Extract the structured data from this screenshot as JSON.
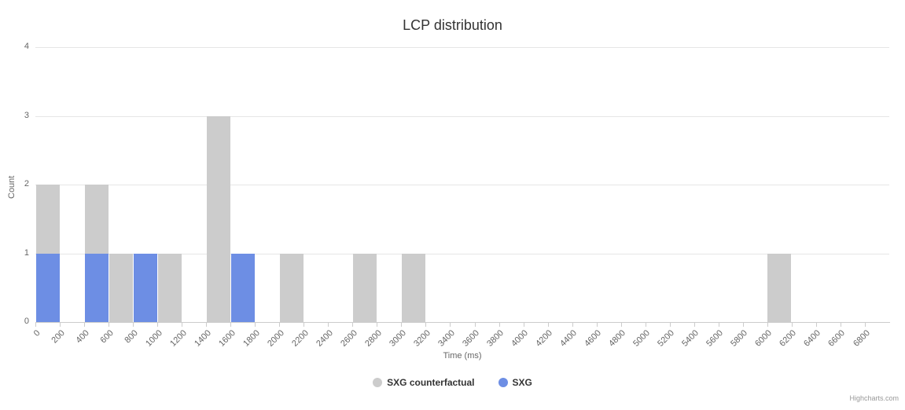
{
  "chart_data": {
    "type": "bar",
    "title": "LCP distribution",
    "xlabel": "Time (ms)",
    "ylabel": "Count",
    "ylim": [
      0,
      4
    ],
    "yticks": [
      0,
      1,
      2,
      3,
      4
    ],
    "bin_width_ms": 200,
    "grid": true,
    "legend_position": "bottom",
    "render": "overlapping-columns",
    "grid_color": "#e6e6e6",
    "axis_color": "#cccccc",
    "tick_text_color": "#666666",
    "title_color": "#333333",
    "categories": [
      0,
      200,
      400,
      600,
      800,
      1000,
      1200,
      1400,
      1600,
      1800,
      2000,
      2200,
      2400,
      2600,
      2800,
      3000,
      3200,
      3400,
      3600,
      3800,
      4000,
      4200,
      4400,
      4600,
      4800,
      5000,
      5200,
      5400,
      5600,
      5800,
      6000,
      6200,
      6400,
      6600,
      6800
    ],
    "series": [
      {
        "name": "SXG counterfactual",
        "color": "#cccccc",
        "values": [
          2,
          0,
          2,
          1,
          0,
          1,
          0,
          3,
          0,
          0,
          1,
          0,
          0,
          1,
          0,
          1,
          0,
          0,
          0,
          0,
          0,
          0,
          0,
          0,
          0,
          0,
          0,
          0,
          0,
          0,
          1,
          0,
          0,
          0,
          0
        ]
      },
      {
        "name": "SXG",
        "color": "#6d8ee4",
        "values": [
          1,
          0,
          1,
          0,
          1,
          0,
          0,
          0,
          1,
          0,
          0,
          0,
          0,
          0,
          0,
          0,
          0,
          0,
          0,
          0,
          0,
          0,
          0,
          0,
          0,
          0,
          0,
          0,
          0,
          0,
          0,
          0,
          0,
          0,
          0
        ]
      }
    ]
  },
  "credits": {
    "label": "Highcharts.com"
  }
}
